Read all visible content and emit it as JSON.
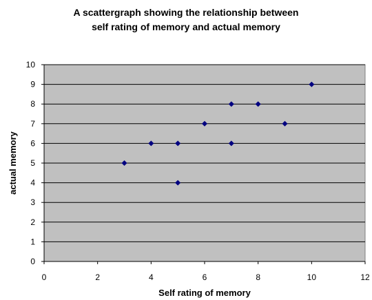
{
  "chart_data": {
    "type": "scatter",
    "title_lines": [
      "A scattergraph showing the relationship between",
      "self rating of memory and actual memory"
    ],
    "xlabel": "Self rating of memory",
    "ylabel": "actual memory",
    "xlim": [
      0,
      12
    ],
    "ylim": [
      0,
      10
    ],
    "xticks": [
      0,
      2,
      4,
      6,
      8,
      10,
      12
    ],
    "yticks": [
      0,
      1,
      2,
      3,
      4,
      5,
      6,
      7,
      8,
      9,
      10
    ],
    "grid": "horizontal",
    "plot_background": "#c0c0c0",
    "marker_color": "#000080",
    "marker": "diamond",
    "points": [
      {
        "x": 3,
        "y": 5
      },
      {
        "x": 4,
        "y": 6
      },
      {
        "x": 5,
        "y": 6
      },
      {
        "x": 5,
        "y": 4
      },
      {
        "x": 6,
        "y": 7
      },
      {
        "x": 7,
        "y": 8
      },
      {
        "x": 7,
        "y": 6
      },
      {
        "x": 8,
        "y": 8
      },
      {
        "x": 9,
        "y": 7
      },
      {
        "x": 10,
        "y": 9
      }
    ]
  }
}
